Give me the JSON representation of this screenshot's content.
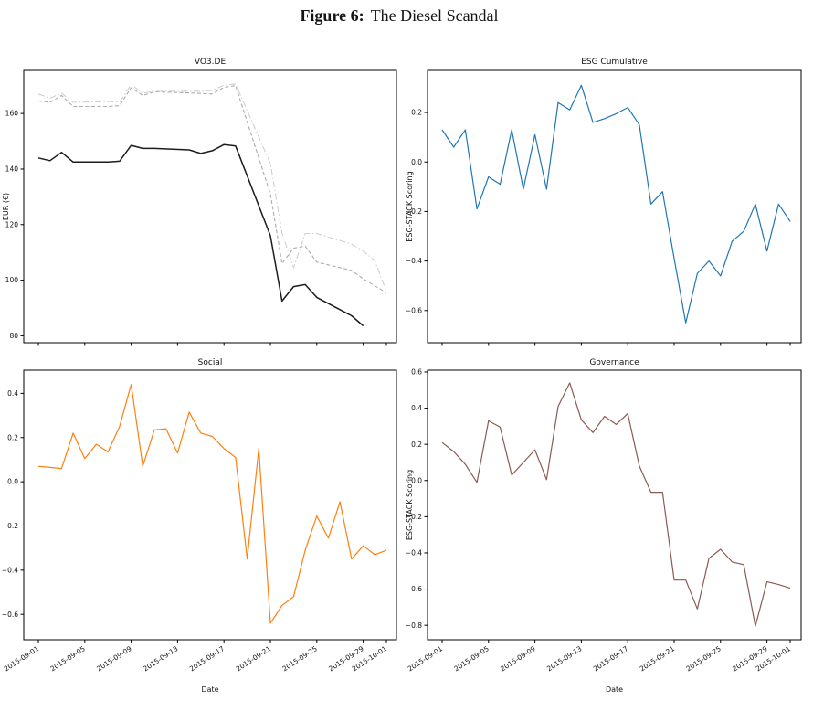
{
  "figure": {
    "label": "Figure 6:",
    "title": "The Diesel Scandal"
  },
  "colors": {
    "stock_main": "#1c1c1c",
    "stock_dashed": "#ababab",
    "stock_dashdot": "#d0d0d0",
    "esg_cumulative": "#1f77b4",
    "social": "#ff7f0e",
    "governance": "#8b5a52"
  },
  "x_axis": {
    "label": "Date",
    "tick_labels": [
      "2015-09-01",
      "2015-09-05",
      "2015-09-09",
      "2015-09-13",
      "2015-09-17",
      "2015-09-21",
      "2015-09-25",
      "2015-09-29",
      "2015-10-01"
    ],
    "tick_days": [
      0,
      4,
      8,
      12,
      16,
      20,
      24,
      28,
      30
    ]
  },
  "chart_data": [
    {
      "id": "vo3de",
      "type": "line",
      "title": "VO3.DE",
      "ylabel": "EUR (€)",
      "xlabel": "",
      "show_x_tick_labels": false,
      "ylim": [
        77.5,
        175.5
      ],
      "yticks": [
        {
          "label": "80",
          "value": 80
        },
        {
          "label": "100",
          "value": 100
        },
        {
          "label": "120",
          "value": 120
        },
        {
          "label": "140",
          "value": 140
        },
        {
          "label": "160",
          "value": 160
        }
      ],
      "series": [
        {
          "name": "solid-black",
          "color": "#1c1c1c",
          "dash": "",
          "width": 1.5,
          "x": [
            0,
            1,
            2,
            3,
            6,
            7,
            8,
            9,
            10,
            13,
            14,
            15,
            16,
            17,
            20,
            21,
            22,
            23,
            24,
            27,
            28
          ],
          "values": [
            144,
            143,
            146,
            142.5,
            142.5,
            142.8,
            148.5,
            147.4,
            147.4,
            146.9,
            145.6,
            146.6,
            148.8,
            148.3,
            116,
            92.5,
            97.7,
            98.4,
            93.8,
            87.2,
            83.6
          ]
        },
        {
          "name": "dashed-gray",
          "color": "#ababab",
          "dash": "4 2.5",
          "width": 1.1,
          "x": [
            0,
            1,
            2,
            3,
            6,
            7,
            8,
            9,
            10,
            13,
            14,
            15,
            16,
            17,
            20,
            21,
            22,
            23,
            24,
            27,
            28,
            29,
            30
          ],
          "values": [
            164.5,
            164,
            166.5,
            162.5,
            162.5,
            162.8,
            169.3,
            166.5,
            167.8,
            167.4,
            167.2,
            167,
            169.4,
            170,
            131,
            106,
            111.5,
            112.3,
            106.5,
            103.5,
            100.5,
            98,
            95.5
          ]
        },
        {
          "name": "dashdot-lightgray",
          "color": "#d0d0d0",
          "dash": "7 2.5 1.5 2.5",
          "width": 1.1,
          "x": [
            0,
            1,
            2,
            3,
            6,
            7,
            8,
            9,
            10,
            13,
            14,
            15,
            16,
            17,
            20,
            21,
            22,
            23,
            24,
            27,
            28,
            29,
            30
          ],
          "values": [
            167,
            165.5,
            167.3,
            164,
            164.3,
            164.1,
            170.4,
            167.3,
            168,
            168,
            168,
            168.3,
            170.2,
            170.6,
            142,
            117,
            104.5,
            116.8,
            116.8,
            113,
            110.5,
            107,
            96
          ]
        }
      ]
    },
    {
      "id": "esgcum",
      "type": "line",
      "title": "ESG Cumulative",
      "ylabel": "ESG-STACK Scoring",
      "xlabel": "",
      "show_x_tick_labels": false,
      "ylim": [
        -0.73,
        0.37
      ],
      "yticks": [
        {
          "label": "0.2",
          "value": 0.2
        },
        {
          "label": "0.0",
          "value": 0.0
        },
        {
          "label": "−0.2",
          "value": -0.2
        },
        {
          "label": "−0.4",
          "value": -0.4
        },
        {
          "label": "−0.6",
          "value": -0.6
        }
      ],
      "series": [
        {
          "name": "esg-cumulative",
          "color": "#1f77b4",
          "dash": "",
          "width": 1.2,
          "x": [
            0,
            1,
            2,
            3,
            4,
            5,
            6,
            7,
            8,
            9,
            10,
            11,
            12,
            13,
            14,
            15,
            16,
            17,
            18,
            19,
            20,
            21,
            22,
            23,
            24,
            25,
            26,
            27,
            28,
            29,
            30
          ],
          "values": [
            0.13,
            0.06,
            0.13,
            -0.19,
            -0.06,
            -0.09,
            0.13,
            -0.11,
            0.11,
            -0.11,
            0.24,
            0.21,
            0.31,
            0.16,
            0.175,
            0.195,
            0.22,
            0.15,
            -0.17,
            -0.12,
            -0.39,
            -0.65,
            -0.45,
            -0.4,
            -0.46,
            -0.32,
            -0.28,
            -0.17,
            -0.36,
            -0.17,
            -0.24
          ]
        }
      ]
    },
    {
      "id": "social",
      "type": "line",
      "title": "Social",
      "ylabel": "ESG-STACK Scoring",
      "xlabel": "Date",
      "show_x_tick_labels": true,
      "ylim": [
        -0.715,
        0.505
      ],
      "yticks": [
        {
          "label": "0.4",
          "value": 0.4
        },
        {
          "label": "0.2",
          "value": 0.2
        },
        {
          "label": "0.0",
          "value": 0.0
        },
        {
          "label": "−0.2",
          "value": -0.2
        },
        {
          "label": "−0.4",
          "value": -0.4
        },
        {
          "label": "−0.6",
          "value": -0.6
        }
      ],
      "series": [
        {
          "name": "social",
          "color": "#ff7f0e",
          "dash": "",
          "width": 1.2,
          "x": [
            0,
            1,
            2,
            3,
            4,
            5,
            6,
            7,
            8,
            9,
            10,
            11,
            12,
            13,
            14,
            15,
            16,
            17,
            18,
            19,
            20,
            21,
            22,
            23,
            24,
            25,
            26,
            27,
            28,
            29,
            30
          ],
          "values": [
            0.07,
            0.065,
            0.06,
            0.22,
            0.105,
            0.17,
            0.135,
            0.25,
            0.44,
            0.07,
            0.235,
            0.24,
            0.13,
            0.315,
            0.22,
            0.205,
            0.15,
            0.11,
            -0.35,
            0.15,
            -0.64,
            -0.56,
            -0.52,
            -0.31,
            -0.155,
            -0.255,
            -0.09,
            -0.35,
            -0.29,
            -0.33,
            -0.31
          ]
        }
      ]
    },
    {
      "id": "governance",
      "type": "line",
      "title": "Governance",
      "ylabel": "ESG-STACK Scoring",
      "xlabel": "Date",
      "show_x_tick_labels": true,
      "ylim": [
        -0.88,
        0.61
      ],
      "yticks": [
        {
          "label": "0.6",
          "value": 0.6
        },
        {
          "label": "0.4",
          "value": 0.4
        },
        {
          "label": "0.2",
          "value": 0.2
        },
        {
          "label": "0.0",
          "value": 0.0
        },
        {
          "label": "−0.2",
          "value": -0.2
        },
        {
          "label": "−0.4",
          "value": -0.4
        },
        {
          "label": "−0.6",
          "value": -0.6
        },
        {
          "label": "−0.8",
          "value": -0.8
        }
      ],
      "series": [
        {
          "name": "governance",
          "color": "#8b5a52",
          "dash": "",
          "width": 1.2,
          "x": [
            0,
            1,
            2,
            3,
            4,
            5,
            6,
            7,
            8,
            9,
            10,
            11,
            12,
            13,
            14,
            15,
            16,
            17,
            18,
            19,
            20,
            21,
            22,
            23,
            24,
            25,
            26,
            27,
            28,
            29,
            30
          ],
          "values": [
            0.21,
            0.16,
            0.09,
            -0.01,
            0.33,
            0.295,
            0.03,
            0.1,
            0.17,
            0.005,
            0.41,
            0.54,
            0.335,
            0.265,
            0.355,
            0.31,
            0.37,
            0.08,
            -0.065,
            -0.065,
            -0.55,
            -0.55,
            -0.71,
            -0.43,
            -0.38,
            -0.45,
            -0.465,
            -0.805,
            -0.56,
            -0.575,
            -0.595
          ]
        }
      ]
    }
  ]
}
